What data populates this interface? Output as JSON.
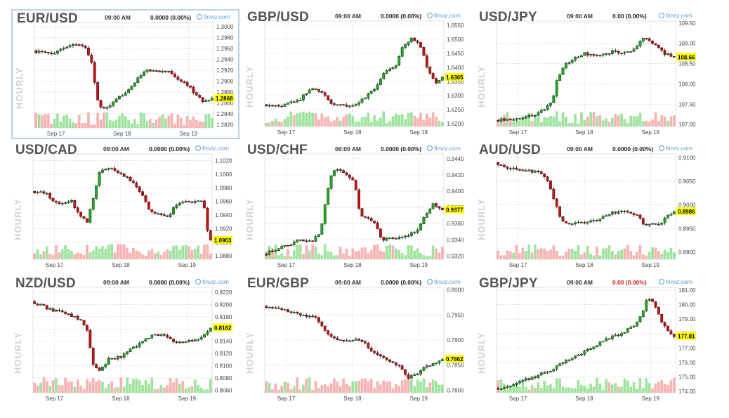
{
  "panel_common": {
    "time": "09:00 AM",
    "source": "finviz.com",
    "timeframe": "HOURLY"
  },
  "colors": {
    "up": "#22aa22",
    "down": "#cc1111",
    "vol_up": "#9ee39e",
    "vol_down": "#f7b2b2",
    "grid": "#cccccc",
    "last_bg": "#ffff00",
    "selected_border": "#b9d3ea",
    "link": "#5b9bd5"
  },
  "icons": {
    "source_icon": "finviz-globe-icon"
  },
  "chart_data": [
    {
      "type": "candlestick",
      "pair": "EUR/USD",
      "change": "0.0000 (0.00%)",
      "change_color": "#222222",
      "last": "1.2868",
      "selected": true,
      "yticks": [
        "1.3000",
        "1.2980",
        "1.2960",
        "1.2940",
        "1.2920",
        "1.2900",
        "1.2880",
        "1.2860",
        "1.2840",
        "1.2820"
      ],
      "ylim": [
        1.2814,
        1.3008
      ],
      "xticks": [
        "Sep 17",
        "Sep 18",
        "Sep 19"
      ],
      "xtick_pos": [
        0.12,
        0.49,
        0.86
      ],
      "path": [
        [
          0,
          1.2956
        ],
        [
          0.1,
          1.295
        ],
        [
          0.17,
          1.2962
        ],
        [
          0.25,
          1.297
        ],
        [
          0.3,
          1.2958
        ],
        [
          0.33,
          1.2932
        ],
        [
          0.36,
          1.2865
        ],
        [
          0.39,
          1.2846
        ],
        [
          0.45,
          1.286
        ],
        [
          0.51,
          1.2878
        ],
        [
          0.57,
          1.2898
        ],
        [
          0.63,
          1.292
        ],
        [
          0.7,
          1.2918
        ],
        [
          0.76,
          1.292
        ],
        [
          0.8,
          1.2905
        ],
        [
          0.85,
          1.2896
        ],
        [
          0.9,
          1.288
        ],
        [
          0.95,
          1.2862
        ],
        [
          1,
          1.2868
        ]
      ]
    },
    {
      "type": "candlestick",
      "pair": "GBP/USD",
      "change": "0.0000 (0.00%)",
      "change_color": "#222222",
      "last": "1.6365",
      "selected": false,
      "yticks": [
        "1.6550",
        "1.6500",
        "1.6450",
        "1.6400",
        "1.6350",
        "1.6300",
        "1.6250",
        "1.6200"
      ],
      "ylim": [
        1.619,
        1.6565
      ],
      "xticks": [
        "Sep 17",
        "Sep 18",
        "Sep 19"
      ],
      "xtick_pos": [
        0.12,
        0.49,
        0.86
      ],
      "path": [
        [
          0,
          1.6268
        ],
        [
          0.1,
          1.6262
        ],
        [
          0.2,
          1.6285
        ],
        [
          0.27,
          1.6325
        ],
        [
          0.33,
          1.6312
        ],
        [
          0.38,
          1.627
        ],
        [
          0.45,
          1.6262
        ],
        [
          0.52,
          1.6272
        ],
        [
          0.58,
          1.63
        ],
        [
          0.63,
          1.633
        ],
        [
          0.68,
          1.6385
        ],
        [
          0.74,
          1.641
        ],
        [
          0.78,
          1.6478
        ],
        [
          0.83,
          1.6505
        ],
        [
          0.88,
          1.6475
        ],
        [
          0.92,
          1.639
        ],
        [
          0.96,
          1.6345
        ],
        [
          1,
          1.6365
        ]
      ]
    },
    {
      "type": "candlestick",
      "pair": "USD/JPY",
      "change": "0.00 (0.00%)",
      "change_color": "#222222",
      "last": "108.66",
      "selected": false,
      "yticks": [
        "109.50",
        "109.00",
        "108.50",
        "108.00",
        "107.50",
        "107.00"
      ],
      "ylim": [
        106.95,
        109.55
      ],
      "xticks": [
        "Sep 17",
        "Sep 18",
        "Sep 19"
      ],
      "xtick_pos": [
        0.12,
        0.49,
        0.86
      ],
      "path": [
        [
          0,
          107.1
        ],
        [
          0.12,
          107.15
        ],
        [
          0.22,
          107.22
        ],
        [
          0.28,
          107.38
        ],
        [
          0.32,
          107.6
        ],
        [
          0.35,
          108.15
        ],
        [
          0.39,
          108.45
        ],
        [
          0.44,
          108.62
        ],
        [
          0.5,
          108.75
        ],
        [
          0.55,
          108.68
        ],
        [
          0.6,
          108.7
        ],
        [
          0.66,
          108.8
        ],
        [
          0.72,
          108.75
        ],
        [
          0.78,
          108.85
        ],
        [
          0.82,
          109.1
        ],
        [
          0.86,
          109.08
        ],
        [
          0.9,
          108.95
        ],
        [
          0.95,
          108.75
        ],
        [
          1,
          108.66
        ]
      ]
    },
    {
      "type": "candlestick",
      "pair": "USD/CAD",
      "change": "0.0000 (0.00%)",
      "change_color": "#222222",
      "last": "1.0903",
      "selected": false,
      "yticks": [
        "1.1020",
        "1.1000",
        "1.0980",
        "1.0960",
        "1.0940",
        "1.0920",
        "1.0900",
        "1.0880"
      ],
      "ylim": [
        1.0875,
        1.103
      ],
      "xticks": [
        "Sep 17",
        "Sep 18",
        "Sep 19"
      ],
      "xtick_pos": [
        0.12,
        0.49,
        0.86
      ],
      "path": [
        [
          0,
          1.0975
        ],
        [
          0.08,
          1.0972
        ],
        [
          0.15,
          1.0955
        ],
        [
          0.22,
          1.0962
        ],
        [
          0.27,
          1.094
        ],
        [
          0.31,
          1.093
        ],
        [
          0.34,
          1.096
        ],
        [
          0.38,
          1.1005
        ],
        [
          0.43,
          1.101
        ],
        [
          0.5,
          1.1
        ],
        [
          0.56,
          1.099
        ],
        [
          0.62,
          1.097
        ],
        [
          0.65,
          1.095
        ],
        [
          0.7,
          1.0942
        ],
        [
          0.76,
          1.0938
        ],
        [
          0.82,
          1.0958
        ],
        [
          0.9,
          1.096
        ],
        [
          0.96,
          1.0962
        ],
        [
          0.98,
          1.092
        ],
        [
          1,
          1.0903
        ]
      ]
    },
    {
      "type": "candlestick",
      "pair": "USD/CHF",
      "change": "0.0000 (0.00%)",
      "change_color": "#222222",
      "last": "0.9377",
      "selected": false,
      "yticks": [
        "0.9440",
        "0.9420",
        "0.9400",
        "0.9380",
        "0.9360",
        "0.9340",
        "0.9320"
      ],
      "ylim": [
        0.9316,
        0.9446
      ],
      "xticks": [
        "Sep 17",
        "Sep 18",
        "Sep 19"
      ],
      "xtick_pos": [
        0.12,
        0.49,
        0.86
      ],
      "path": [
        [
          0,
          0.9322
        ],
        [
          0.1,
          0.933
        ],
        [
          0.2,
          0.934
        ],
        [
          0.27,
          0.9338
        ],
        [
          0.32,
          0.935
        ],
        [
          0.35,
          0.939
        ],
        [
          0.38,
          0.942
        ],
        [
          0.41,
          0.9428
        ],
        [
          0.46,
          0.942
        ],
        [
          0.51,
          0.9412
        ],
        [
          0.54,
          0.937
        ],
        [
          0.58,
          0.9368
        ],
        [
          0.63,
          0.9358
        ],
        [
          0.66,
          0.934
        ],
        [
          0.72,
          0.9342
        ],
        [
          0.8,
          0.9345
        ],
        [
          0.86,
          0.9352
        ],
        [
          0.9,
          0.9368
        ],
        [
          0.95,
          0.9385
        ],
        [
          1,
          0.9377
        ]
      ]
    },
    {
      "type": "candlestick",
      "pair": "AUD/USD",
      "change": "0.0000 (0.00%)",
      "change_color": "#222222",
      "last": "0.8986",
      "selected": false,
      "yticks": [
        "0.9100",
        "0.9050",
        "0.9000",
        "0.8950",
        "0.8900"
      ],
      "ylim": [
        0.8885,
        0.9108
      ],
      "xticks": [
        "Sep 17",
        "Sep 18",
        "Sep 19"
      ],
      "xtick_pos": [
        0.12,
        0.49,
        0.86
      ],
      "path": [
        [
          0,
          0.909
        ],
        [
          0.08,
          0.9078
        ],
        [
          0.16,
          0.9072
        ],
        [
          0.24,
          0.907
        ],
        [
          0.3,
          0.9048
        ],
        [
          0.34,
          0.9
        ],
        [
          0.37,
          0.8965
        ],
        [
          0.42,
          0.896
        ],
        [
          0.5,
          0.8962
        ],
        [
          0.58,
          0.897
        ],
        [
          0.64,
          0.8982
        ],
        [
          0.7,
          0.8985
        ],
        [
          0.76,
          0.8982
        ],
        [
          0.8,
          0.8975
        ],
        [
          0.84,
          0.8955
        ],
        [
          0.88,
          0.896
        ],
        [
          0.92,
          0.8958
        ],
        [
          0.96,
          0.8975
        ],
        [
          1,
          0.8986
        ]
      ]
    },
    {
      "type": "candlestick",
      "pair": "NZD/USD",
      "change": "0.0000 (0.00%)",
      "change_color": "#222222",
      "last": "0.8162",
      "selected": false,
      "yticks": [
        "0.8220",
        "0.8200",
        "0.8180",
        "0.8160",
        "0.8140",
        "0.8120",
        "0.8100",
        "0.8080",
        "0.8060"
      ],
      "ylim": [
        0.8056,
        0.8228
      ],
      "xticks": [
        "Sep 17",
        "Sep 18",
        "Sep 19"
      ],
      "xtick_pos": [
        0.12,
        0.49,
        0.86
      ],
      "path": [
        [
          0,
          0.8205
        ],
        [
          0.06,
          0.8198
        ],
        [
          0.12,
          0.819
        ],
        [
          0.2,
          0.8185
        ],
        [
          0.27,
          0.8175
        ],
        [
          0.31,
          0.816
        ],
        [
          0.34,
          0.8105
        ],
        [
          0.38,
          0.809
        ],
        [
          0.43,
          0.811
        ],
        [
          0.5,
          0.8115
        ],
        [
          0.56,
          0.8128
        ],
        [
          0.62,
          0.8138
        ],
        [
          0.68,
          0.8152
        ],
        [
          0.74,
          0.815
        ],
        [
          0.8,
          0.8138
        ],
        [
          0.86,
          0.814
        ],
        [
          0.92,
          0.8142
        ],
        [
          0.96,
          0.815
        ],
        [
          1,
          0.8162
        ]
      ]
    },
    {
      "type": "candlestick",
      "pair": "EUR/GBP",
      "change": "0.0000 (0.00%)",
      "change_color": "#222222",
      "last": "0.7862",
      "selected": false,
      "yticks": [
        "0.8000",
        "0.7950",
        "0.7900",
        "0.7850",
        "0.7800"
      ],
      "ylim": [
        0.7795,
        0.8005
      ],
      "xticks": [
        "Sep 17",
        "Sep 18",
        "Sep 19"
      ],
      "xtick_pos": [
        0.12,
        0.49,
        0.86
      ],
      "path": [
        [
          0,
          0.7968
        ],
        [
          0.08,
          0.7962
        ],
        [
          0.16,
          0.7955
        ],
        [
          0.24,
          0.7948
        ],
        [
          0.3,
          0.7945
        ],
        [
          0.34,
          0.792
        ],
        [
          0.38,
          0.7908
        ],
        [
          0.44,
          0.7898
        ],
        [
          0.5,
          0.7902
        ],
        [
          0.56,
          0.7898
        ],
        [
          0.6,
          0.788
        ],
        [
          0.64,
          0.787
        ],
        [
          0.7,
          0.786
        ],
        [
          0.76,
          0.7848
        ],
        [
          0.8,
          0.7825
        ],
        [
          0.86,
          0.783
        ],
        [
          0.9,
          0.7845
        ],
        [
          0.94,
          0.7852
        ],
        [
          1,
          0.7862
        ]
      ]
    },
    {
      "type": "candlestick",
      "pair": "GBP/JPY",
      "change": "0.00 (0.00%)",
      "change_color": "#d22222",
      "last": "177.81",
      "selected": false,
      "yticks": [
        "181.00",
        "180.00",
        "179.00",
        "178.00",
        "177.00",
        "176.00",
        "175.00",
        "174.00"
      ],
      "ylim": [
        173.9,
        181.2
      ],
      "xticks": [
        "Sep 17",
        "Sep 18",
        "Sep 19"
      ],
      "xtick_pos": [
        0.12,
        0.49,
        0.86
      ],
      "path": [
        [
          0,
          174.2
        ],
        [
          0.08,
          174.35
        ],
        [
          0.16,
          174.75
        ],
        [
          0.24,
          175.1
        ],
        [
          0.3,
          175.4
        ],
        [
          0.36,
          175.8
        ],
        [
          0.42,
          176.3
        ],
        [
          0.48,
          176.6
        ],
        [
          0.54,
          177.0
        ],
        [
          0.6,
          177.45
        ],
        [
          0.66,
          177.8
        ],
        [
          0.72,
          178.1
        ],
        [
          0.78,
          178.6
        ],
        [
          0.82,
          179.3
        ],
        [
          0.85,
          180.5
        ],
        [
          0.88,
          180.3
        ],
        [
          0.92,
          179.1
        ],
        [
          0.96,
          178.2
        ],
        [
          1,
          177.81
        ]
      ]
    }
  ]
}
